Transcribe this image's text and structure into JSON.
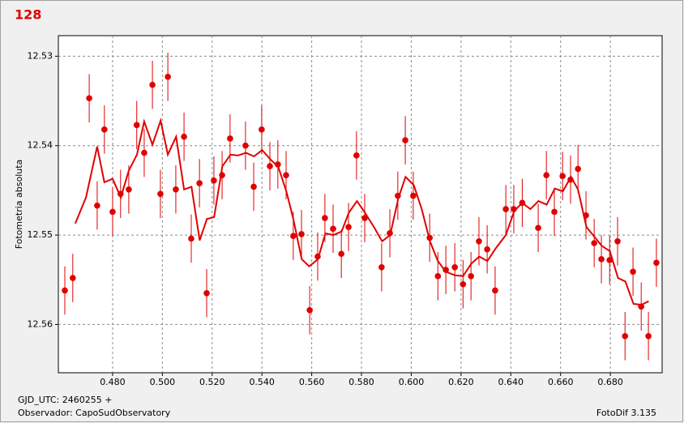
{
  "chart_data": {
    "type": "scatter",
    "title": "128",
    "y_label": "Fotometria absoluta",
    "xlim": [
      0.4582,
      0.7008
    ],
    "ylim": [
      12.5277,
      12.5654
    ],
    "invert_y": true,
    "grid": true,
    "xticks": [
      {
        "value": 0.48,
        "label": "0.480"
      },
      {
        "value": 0.5,
        "label": "0.500"
      },
      {
        "value": 0.52,
        "label": "0.520"
      },
      {
        "value": 0.54,
        "label": "0.540"
      },
      {
        "value": 0.56,
        "label": "0.560"
      },
      {
        "value": 0.58,
        "label": "0.580"
      },
      {
        "value": 0.6,
        "label": "0.600"
      },
      {
        "value": 0.62,
        "label": "0.620"
      },
      {
        "value": 0.64,
        "label": "0.640"
      },
      {
        "value": 0.66,
        "label": "0.660"
      },
      {
        "value": 0.68,
        "label": "0.680"
      }
    ],
    "yticks": [
      12.53,
      12.54,
      12.55,
      12.56
    ],
    "series": [
      {
        "type": "scatter",
        "color": "#e00000",
        "error": 0.0027,
        "x": [
          0.4608,
          0.464,
          0.4706,
          0.4738,
          0.4767,
          0.48,
          0.4832,
          0.4865,
          0.4897,
          0.4927,
          0.496,
          0.4992,
          0.5022,
          0.5054,
          0.5087,
          0.5116,
          0.5149,
          0.5178,
          0.5207,
          0.524,
          0.5272,
          0.5334,
          0.5367,
          0.5399,
          0.5432,
          0.5464,
          0.5497,
          0.5526,
          0.5559,
          0.5592,
          0.5624,
          0.5653,
          0.5686,
          0.5719,
          0.5748,
          0.578,
          0.5813,
          0.5881,
          0.5914,
          0.5946,
          0.5976,
          0.6008,
          0.6074,
          0.6107,
          0.6139,
          0.6175,
          0.6208,
          0.624,
          0.6272,
          0.6305,
          0.6337,
          0.638,
          0.6412,
          0.6446,
          0.651,
          0.6543,
          0.6575,
          0.6608,
          0.664,
          0.667,
          0.6702,
          0.6735,
          0.6764,
          0.6797,
          0.6829,
          0.6859,
          0.6891,
          0.6924,
          0.6953,
          0.6985
        ],
        "values": [
          12.5562,
          12.5548,
          12.5347,
          12.5467,
          12.5382,
          12.5474,
          12.5454,
          12.5449,
          12.5377,
          12.5408,
          12.5332,
          12.5454,
          12.5323,
          12.5449,
          12.539,
          12.5504,
          12.5442,
          12.5565,
          12.5439,
          12.5433,
          12.5392,
          12.54,
          12.5446,
          12.5382,
          12.5423,
          12.5421,
          12.5433,
          12.5501,
          12.5499,
          12.5584,
          12.5524,
          12.5481,
          12.5493,
          12.5521,
          12.5491,
          12.5411,
          12.5481,
          12.5536,
          12.5498,
          12.5456,
          12.5394,
          12.5456,
          12.5503,
          12.5546,
          12.5539,
          12.5536,
          12.5555,
          12.5546,
          12.5507,
          12.5516,
          12.5562,
          12.5471,
          12.5471,
          12.5464,
          12.5492,
          12.5433,
          12.5474,
          12.5434,
          12.5438,
          12.5426,
          12.5478,
          12.5509,
          12.5527,
          12.5528,
          12.5507,
          12.5613,
          12.5541,
          12.558,
          12.5613,
          12.5531
        ]
      },
      {
        "type": "line",
        "color": "#e00000",
        "x": [
          0.465,
          0.4693,
          0.4738,
          0.4767,
          0.48,
          0.4833,
          0.4865,
          0.4898,
          0.4927,
          0.496,
          0.4993,
          0.5022,
          0.5055,
          0.5087,
          0.5117,
          0.515,
          0.5179,
          0.5208,
          0.5241,
          0.5274,
          0.5303,
          0.5336,
          0.5368,
          0.5401,
          0.5433,
          0.5466,
          0.5499,
          0.5526,
          0.556,
          0.559,
          0.5625,
          0.5655,
          0.5687,
          0.572,
          0.5749,
          0.5782,
          0.5814,
          0.585,
          0.5883,
          0.5915,
          0.5948,
          0.5977,
          0.601,
          0.6042,
          0.6075,
          0.6107,
          0.6139,
          0.6175,
          0.6208,
          0.6241,
          0.6273,
          0.6306,
          0.6339,
          0.638,
          0.6414,
          0.6446,
          0.6479,
          0.6511,
          0.6544,
          0.6577,
          0.6609,
          0.6642,
          0.667,
          0.6704,
          0.6736,
          0.6765,
          0.6798,
          0.6831,
          0.686,
          0.6893,
          0.6925,
          0.6954
        ],
        "values": [
          12.5487,
          12.5458,
          12.5401,
          12.5441,
          12.5437,
          12.5458,
          12.5428,
          12.541,
          12.5373,
          12.5399,
          12.5372,
          12.541,
          12.539,
          12.5449,
          12.5446,
          12.5506,
          12.5482,
          12.548,
          12.5423,
          12.541,
          12.5411,
          12.5408,
          12.5412,
          12.5405,
          12.5415,
          12.5424,
          12.5452,
          12.5482,
          12.5527,
          12.5535,
          12.5527,
          12.5498,
          12.55,
          12.5496,
          12.5475,
          12.5462,
          12.5475,
          12.5491,
          12.5507,
          12.55,
          12.5459,
          12.5435,
          12.5444,
          12.5471,
          12.5507,
          12.5529,
          12.5541,
          12.5545,
          12.5546,
          12.5532,
          12.5524,
          12.5529,
          12.5515,
          12.55,
          12.5473,
          12.5464,
          12.5471,
          12.5462,
          12.5466,
          12.5448,
          12.5451,
          12.5435,
          12.5449,
          12.5491,
          12.5502,
          12.5512,
          12.5518,
          12.5548,
          12.5552,
          12.5577,
          12.5578,
          12.5574
        ]
      }
    ]
  },
  "footer": {
    "lines": [
      "GJD_UTC: 2460255 +",
      "Observador: CapoSudObservatory"
    ],
    "version": "FotoDif 3.135"
  }
}
